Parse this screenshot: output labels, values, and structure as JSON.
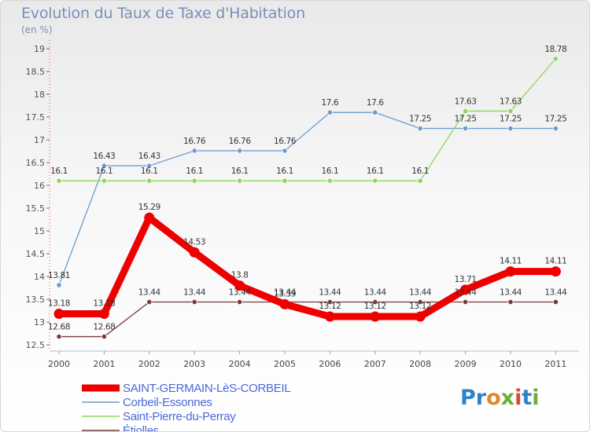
{
  "title": "Evolution du Taux de Taxe d'Habitation",
  "subtitle": "(en %)",
  "logo": {
    "p": "Pr",
    "o": "o",
    "x": "x",
    "i": "i",
    "t": "t",
    "i2": "i"
  },
  "chart_data": {
    "type": "line",
    "title": "Evolution du Taux de Taxe d'Habitation",
    "ylabel": "(en %)",
    "xlabel": "",
    "ylim": [
      12.5,
      19
    ],
    "yticks": [
      "12.5",
      "13",
      "13.5",
      "14",
      "14.5",
      "15",
      "15.5",
      "16",
      "16.5",
      "17",
      "17.5",
      "18",
      "18.5",
      "19"
    ],
    "x": [
      "2000",
      "2001",
      "2002",
      "2003",
      "2004",
      "2005",
      "2006",
      "2007",
      "2008",
      "2009",
      "2010",
      "2011"
    ],
    "grid": false,
    "series": [
      {
        "name": "SAINT-GERMAIN-LèS-CORBEIL",
        "color": "#ee0000",
        "thick": true,
        "values": [
          13.18,
          13.18,
          15.29,
          14.53,
          13.8,
          13.39,
          13.12,
          13.12,
          13.12,
          13.71,
          14.11,
          14.11
        ],
        "labels": [
          "13.18",
          "13.18",
          "15.29",
          "14.53",
          "13.8",
          "13.39",
          "13.12",
          "13.12",
          "13.12",
          "13.71",
          "14.11",
          "14.11"
        ]
      },
      {
        "name": "Corbeil-Essonnes",
        "color": "#6b9ccf",
        "thick": false,
        "values": [
          13.81,
          16.43,
          16.43,
          16.76,
          16.76,
          16.76,
          17.6,
          17.6,
          17.25,
          17.25,
          17.25,
          17.25
        ],
        "labels": [
          "13.81",
          "16.43",
          "16.43",
          "16.76",
          "16.76",
          "16.76",
          "17.6",
          "17.6",
          "17.25",
          "17.25",
          "17.25",
          "17.25"
        ]
      },
      {
        "name": "Saint-Pierre-du-Perray",
        "color": "#8fd65a",
        "thick": false,
        "values": [
          16.1,
          16.1,
          16.1,
          16.1,
          16.1,
          16.1,
          16.1,
          16.1,
          16.1,
          17.63,
          17.63,
          18.78
        ],
        "labels": [
          "16.1",
          "16.1",
          "16.1",
          "16.1",
          "16.1",
          "16.1",
          "16.1",
          "16.1",
          "16.1",
          "17.63",
          "17.63",
          "18.78"
        ]
      },
      {
        "name": "Étiolles",
        "color": "#7a3a3a",
        "thick": false,
        "values": [
          12.68,
          12.68,
          13.44,
          13.44,
          13.44,
          13.44,
          13.44,
          13.44,
          13.44,
          13.44,
          13.44,
          13.44
        ],
        "labels": [
          "12.68",
          "12.68",
          "13.44",
          "13.44",
          "13.44",
          "13.44",
          "13.44",
          "13.44",
          "13.44",
          "13.44",
          "13.44",
          "13.44"
        ]
      }
    ]
  }
}
